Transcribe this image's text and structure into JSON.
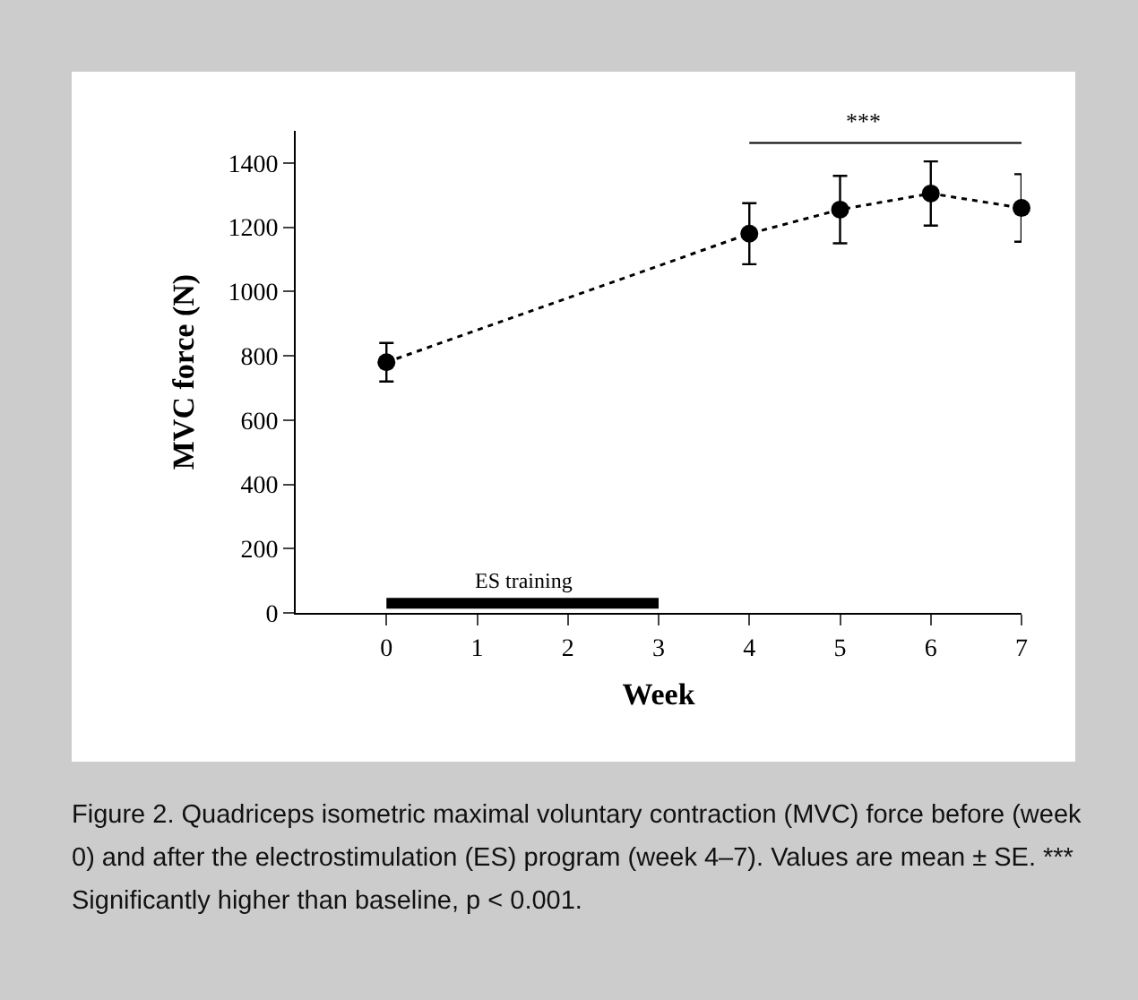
{
  "chart_data": {
    "type": "line",
    "xlabel": "Week",
    "ylabel": "MVC force (N)",
    "x": [
      0,
      4,
      5,
      6,
      7
    ],
    "series": [
      {
        "color": "#000000",
        "values": [
          780,
          1180,
          1255,
          1305,
          1260
        ],
        "errors": [
          60,
          95,
          105,
          100,
          105
        ]
      },
      {
        "name": "ES training",
        "color": "#000000",
        "x": [
          0,
          3
        ],
        "values": [
          30,
          30
        ],
        "marker": "none",
        "line_style": "solid"
      }
    ],
    "xlim": [
      -1,
      7
    ],
    "xticks": [
      0,
      1,
      2,
      3,
      4,
      5,
      6,
      7
    ],
    "ylim": [
      0,
      1500
    ],
    "yticks": [
      0,
      200,
      400,
      600,
      800,
      1000,
      1200,
      1400
    ],
    "marker": "circle",
    "line_style": "dotted",
    "grid": false,
    "legend": false,
    "annotations": [
      "***",
      "Figure 2. Quadriceps isometric maximal voluntary contraction (MVC) force before (week 0) and after the electrostimulation (ES) program (week 4–7). Values are mean ± SE. *** Significantly higher than baseline, p < 0.001."
    ]
  }
}
